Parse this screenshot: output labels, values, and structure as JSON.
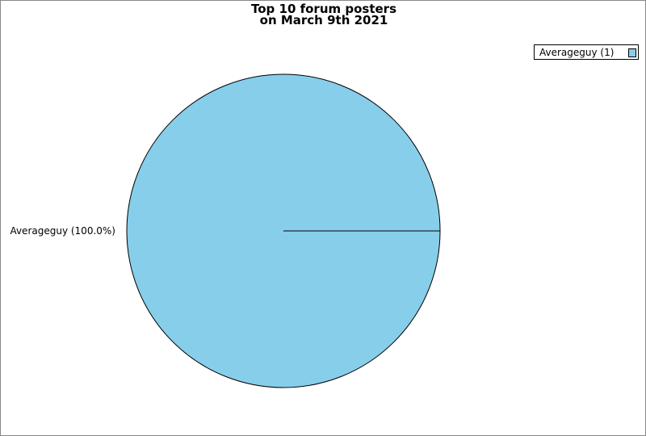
{
  "chart_data": {
    "type": "pie",
    "title_lines": [
      "Top 10 forum posters",
      "on March 9th 2021"
    ],
    "slices": [
      {
        "name": "Averageguy",
        "value": 1,
        "percent_label": "Averageguy (100.0%)",
        "legend_label": "Averageguy (1)",
        "color": "#87ceeb"
      }
    ],
    "legend_placement": "top-right"
  }
}
